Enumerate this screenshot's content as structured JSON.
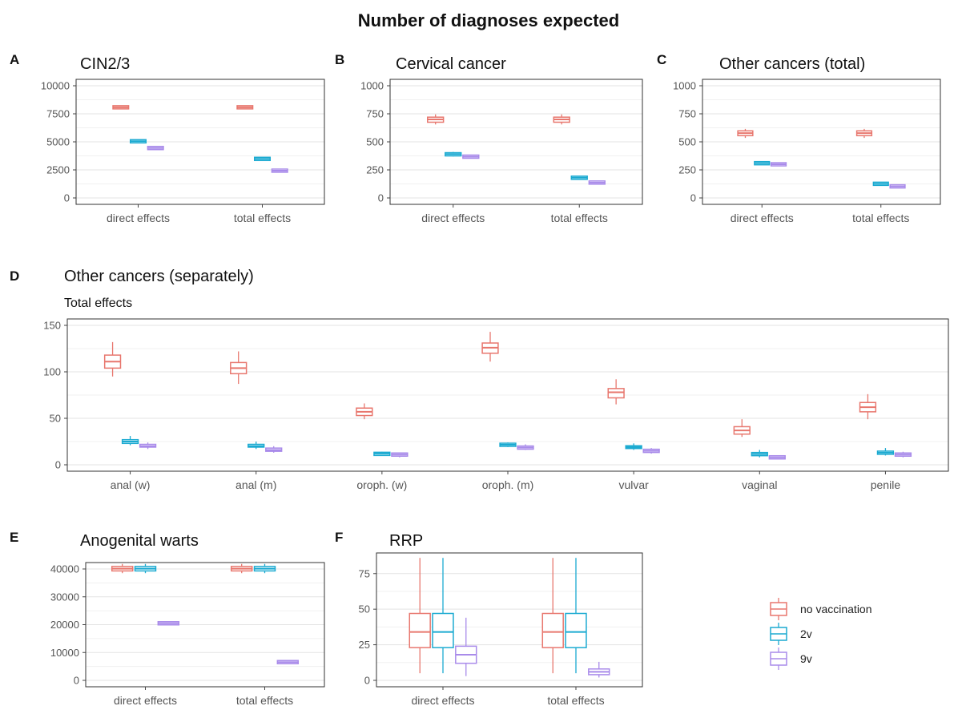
{
  "title": "Number of diagnoses expected",
  "colors": {
    "no vaccination": "#E8776E",
    "2v": "#1BAAD1",
    "9v": "#A98BEA"
  },
  "legend": {
    "position": "right",
    "items": [
      "no vaccination",
      "2v",
      "9v"
    ]
  },
  "chart_data": [
    {
      "id": "A",
      "label": "A",
      "title": "CIN2/3",
      "subtitle": "",
      "type": "boxplot",
      "categories": [
        "direct effects",
        "total effects"
      ],
      "ylim": [
        0,
        10000
      ],
      "yticks": [
        0,
        2500,
        5000,
        7500,
        10000
      ],
      "grid": true,
      "series": [
        {
          "name": "no vaccination",
          "boxes": [
            {
              "category": "direct effects",
              "min": 7950,
              "q1": 8010,
              "median": 8080,
              "q3": 8150,
              "max": 8200
            },
            {
              "category": "total effects",
              "min": 7950,
              "q1": 8010,
              "median": 8080,
              "q3": 8150,
              "max": 8200
            }
          ]
        },
        {
          "name": "2v",
          "boxes": [
            {
              "category": "direct effects",
              "min": 4950,
              "q1": 5000,
              "median": 5050,
              "q3": 5100,
              "max": 5150
            },
            {
              "category": "total effects",
              "min": 3400,
              "q1": 3440,
              "median": 3480,
              "q3": 3520,
              "max": 3560
            }
          ]
        },
        {
          "name": "9v",
          "boxes": [
            {
              "category": "direct effects",
              "min": 4350,
              "q1": 4400,
              "median": 4450,
              "q3": 4500,
              "max": 4540
            },
            {
              "category": "total effects",
              "min": 2360,
              "q1": 2400,
              "median": 2430,
              "q3": 2460,
              "max": 2490
            }
          ]
        }
      ]
    },
    {
      "id": "B",
      "label": "B",
      "title": "Cervical cancer",
      "subtitle": "",
      "type": "boxplot",
      "categories": [
        "direct effects",
        "total effects"
      ],
      "ylim": [
        0,
        1000
      ],
      "yticks": [
        0,
        250,
        500,
        750,
        1000
      ],
      "grid": true,
      "series": [
        {
          "name": "no vaccination",
          "boxes": [
            {
              "category": "direct effects",
              "min": 655,
              "q1": 675,
              "median": 700,
              "q3": 720,
              "max": 745
            },
            {
              "category": "total effects",
              "min": 655,
              "q1": 675,
              "median": 700,
              "q3": 720,
              "max": 745
            }
          ]
        },
        {
          "name": "2v",
          "boxes": [
            {
              "category": "direct effects",
              "min": 370,
              "q1": 380,
              "median": 390,
              "q3": 398,
              "max": 410
            },
            {
              "category": "total effects",
              "min": 170,
              "q1": 175,
              "median": 180,
              "q3": 185,
              "max": 190
            }
          ]
        },
        {
          "name": "9v",
          "boxes": [
            {
              "category": "direct effects",
              "min": 350,
              "q1": 360,
              "median": 368,
              "q3": 376,
              "max": 385
            },
            {
              "category": "total effects",
              "min": 128,
              "q1": 133,
              "median": 137,
              "q3": 141,
              "max": 146
            }
          ]
        }
      ]
    },
    {
      "id": "C",
      "label": "C",
      "title": "Other cancers (total)",
      "subtitle": "",
      "type": "boxplot",
      "categories": [
        "direct effects",
        "total effects"
      ],
      "ylim": [
        0,
        1000
      ],
      "yticks": [
        0,
        250,
        500,
        750,
        1000
      ],
      "grid": true,
      "series": [
        {
          "name": "no vaccination",
          "boxes": [
            {
              "category": "direct effects",
              "min": 535,
              "q1": 555,
              "median": 578,
              "q3": 598,
              "max": 615
            },
            {
              "category": "total effects",
              "min": 535,
              "q1": 555,
              "median": 578,
              "q3": 598,
              "max": 615
            }
          ]
        },
        {
          "name": "2v",
          "boxes": [
            {
              "category": "direct effects",
              "min": 295,
              "q1": 302,
              "median": 310,
              "q3": 317,
              "max": 325
            },
            {
              "category": "total effects",
              "min": 118,
              "q1": 122,
              "median": 126,
              "q3": 130,
              "max": 134
            }
          ]
        },
        {
          "name": "9v",
          "boxes": [
            {
              "category": "direct effects",
              "min": 285,
              "q1": 292,
              "median": 300,
              "q3": 308,
              "max": 315
            },
            {
              "category": "total effects",
              "min": 97,
              "q1": 100,
              "median": 103,
              "q3": 106,
              "max": 109
            }
          ]
        }
      ]
    },
    {
      "id": "D",
      "label": "D",
      "title": "Other cancers (separately)",
      "subtitle": "Total effects",
      "type": "boxplot",
      "categories": [
        "anal (w)",
        "anal (m)",
        "oroph. (w)",
        "oroph. (m)",
        "vulvar",
        "vaginal",
        "penile"
      ],
      "ylim": [
        0,
        150
      ],
      "yticks": [
        0,
        50,
        100,
        150
      ],
      "grid": true,
      "series": [
        {
          "name": "no vaccination",
          "boxes": [
            {
              "category": "anal (w)",
              "min": 95,
              "q1": 104,
              "median": 111,
              "q3": 118,
              "max": 132
            },
            {
              "category": "anal (m)",
              "min": 87,
              "q1": 98,
              "median": 104,
              "q3": 110,
              "max": 122
            },
            {
              "category": "oroph. (w)",
              "min": 49,
              "q1": 53,
              "median": 57,
              "q3": 61,
              "max": 66
            },
            {
              "category": "oroph. (m)",
              "min": 111,
              "q1": 120,
              "median": 126,
              "q3": 131,
              "max": 143
            },
            {
              "category": "vulvar",
              "min": 65,
              "q1": 72,
              "median": 78,
              "q3": 82,
              "max": 92
            },
            {
              "category": "vaginal",
              "min": 30,
              "q1": 33,
              "median": 37,
              "q3": 41,
              "max": 49
            },
            {
              "category": "penile",
              "min": 49,
              "q1": 57,
              "median": 62,
              "q3": 67,
              "max": 76
            }
          ]
        },
        {
          "name": "2v",
          "boxes": [
            {
              "category": "anal (w)",
              "min": 21,
              "q1": 23,
              "median": 25,
              "q3": 27,
              "max": 31
            },
            {
              "category": "anal (m)",
              "min": 17,
              "q1": 19,
              "median": 20,
              "q3": 22,
              "max": 25
            },
            {
              "category": "oroph. (w)",
              "min": 10,
              "q1": 11,
              "median": 12,
              "q3": 12.5,
              "max": 14
            },
            {
              "category": "oroph. (m)",
              "min": 19,
              "q1": 20.5,
              "median": 21.5,
              "q3": 22.5,
              "max": 24
            },
            {
              "category": "vulvar",
              "min": 16,
              "q1": 17.5,
              "median": 19,
              "q3": 20.5,
              "max": 23
            },
            {
              "category": "vaginal",
              "min": 8,
              "q1": 10.5,
              "median": 11.5,
              "q3": 12.5,
              "max": 16
            },
            {
              "category": "penile",
              "min": 10,
              "q1": 12,
              "median": 13,
              "q3": 14,
              "max": 18
            }
          ]
        },
        {
          "name": "9v",
          "boxes": [
            {
              "category": "anal (w)",
              "min": 17,
              "q1": 19,
              "median": 20,
              "q3": 22,
              "max": 24
            },
            {
              "category": "anal (m)",
              "min": 13,
              "q1": 15,
              "median": 16,
              "q3": 17.5,
              "max": 20
            },
            {
              "category": "oroph. (w)",
              "min": 8,
              "q1": 10,
              "median": 11,
              "q3": 12,
              "max": 13
            },
            {
              "category": "oroph. (m)",
              "min": 16,
              "q1": 17.5,
              "median": 18.5,
              "q3": 19.5,
              "max": 22
            },
            {
              "category": "vulvar",
              "min": 12,
              "q1": 14,
              "median": 15,
              "q3": 16,
              "max": 18
            },
            {
              "category": "vaginal",
              "min": 6,
              "q1": 7,
              "median": 8,
              "q3": 9,
              "max": 10
            },
            {
              "category": "penile",
              "min": 8,
              "q1": 10,
              "median": 11,
              "q3": 12,
              "max": 14
            }
          ]
        }
      ]
    },
    {
      "id": "E",
      "label": "E",
      "title": "Anogenital warts",
      "subtitle": "",
      "type": "boxplot",
      "categories": [
        "direct effects",
        "total effects"
      ],
      "ylim": [
        0,
        40000
      ],
      "yticks": [
        0,
        10000,
        20000,
        30000,
        40000
      ],
      "grid": true,
      "series": [
        {
          "name": "no vaccination",
          "boxes": [
            {
              "category": "direct effects",
              "min": 38500,
              "q1": 39300,
              "median": 40100,
              "q3": 40900,
              "max": 41800
            },
            {
              "category": "total effects",
              "min": 38500,
              "q1": 39300,
              "median": 40100,
              "q3": 40900,
              "max": 41800
            }
          ]
        },
        {
          "name": "2v",
          "boxes": [
            {
              "category": "direct effects",
              "min": 38500,
              "q1": 39300,
              "median": 40100,
              "q3": 40900,
              "max": 41800
            },
            {
              "category": "total effects",
              "min": 38500,
              "q1": 39300,
              "median": 40100,
              "q3": 40900,
              "max": 41800
            }
          ]
        },
        {
          "name": "9v",
          "boxes": [
            {
              "category": "direct effects",
              "min": 20100,
              "q1": 20300,
              "median": 20500,
              "q3": 20700,
              "max": 20900
            },
            {
              "category": "total effects",
              "min": 6350,
              "q1": 6450,
              "median": 6550,
              "q3": 6650,
              "max": 6750
            }
          ]
        }
      ]
    },
    {
      "id": "F",
      "label": "F",
      "title": "RRP",
      "subtitle": "",
      "type": "boxplot",
      "categories": [
        "direct effects",
        "total effects"
      ],
      "ylim": [
        0,
        85
      ],
      "yticks": [
        0,
        25,
        50,
        75
      ],
      "grid": true,
      "series": [
        {
          "name": "no vaccination",
          "boxes": [
            {
              "category": "direct effects",
              "min": 5,
              "q1": 23,
              "median": 34,
              "q3": 47,
              "max": 86
            },
            {
              "category": "total effects",
              "min": 5,
              "q1": 23,
              "median": 34,
              "q3": 47,
              "max": 86
            }
          ]
        },
        {
          "name": "2v",
          "boxes": [
            {
              "category": "direct effects",
              "min": 5,
              "q1": 23,
              "median": 34,
              "q3": 47,
              "max": 86
            },
            {
              "category": "total effects",
              "min": 5,
              "q1": 23,
              "median": 34,
              "q3": 47,
              "max": 86
            }
          ]
        },
        {
          "name": "9v",
          "boxes": [
            {
              "category": "direct effects",
              "min": 3,
              "q1": 12,
              "median": 18,
              "q3": 24,
              "max": 44
            },
            {
              "category": "total effects",
              "min": 2,
              "q1": 4,
              "median": 6,
              "q3": 8,
              "max": 13
            }
          ]
        }
      ]
    }
  ]
}
